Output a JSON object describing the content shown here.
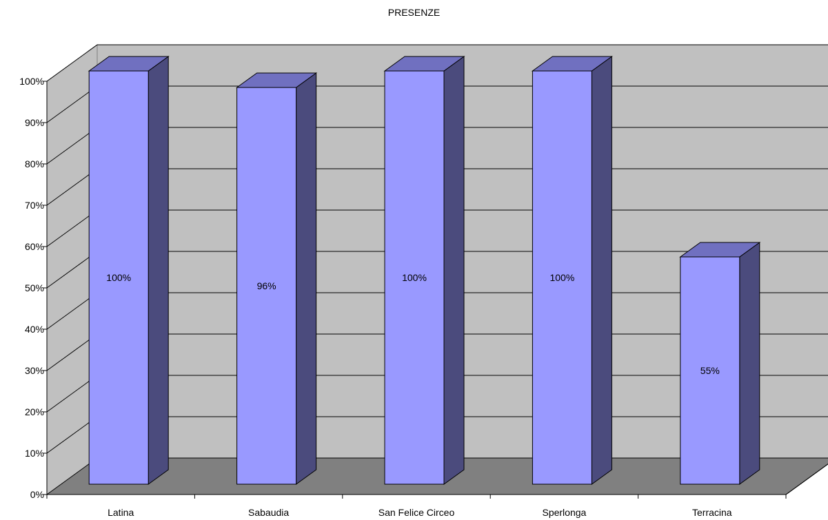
{
  "chart_data": {
    "type": "bar",
    "title": "PRESENZE",
    "categories": [
      "Latina",
      "Sabaudia",
      "San Felice Circeo",
      "Sperlonga",
      "Terracina"
    ],
    "values": [
      100,
      96,
      100,
      100,
      55
    ],
    "value_labels": [
      "100%",
      "96%",
      "100%",
      "100%",
      "55%"
    ],
    "y_ticks": [
      "0%",
      "10%",
      "20%",
      "30%",
      "40%",
      "50%",
      "60%",
      "70%",
      "80%",
      "90%",
      "100%"
    ],
    "ylim": [
      0,
      100
    ],
    "grid": true,
    "legend": "none",
    "three_d": true,
    "colors": {
      "bar_front": "#9999ff",
      "bar_side": "#4b4b7d",
      "bar_top": "#7070c0",
      "wall": "#c0c0c0",
      "floor": "#808080"
    }
  }
}
